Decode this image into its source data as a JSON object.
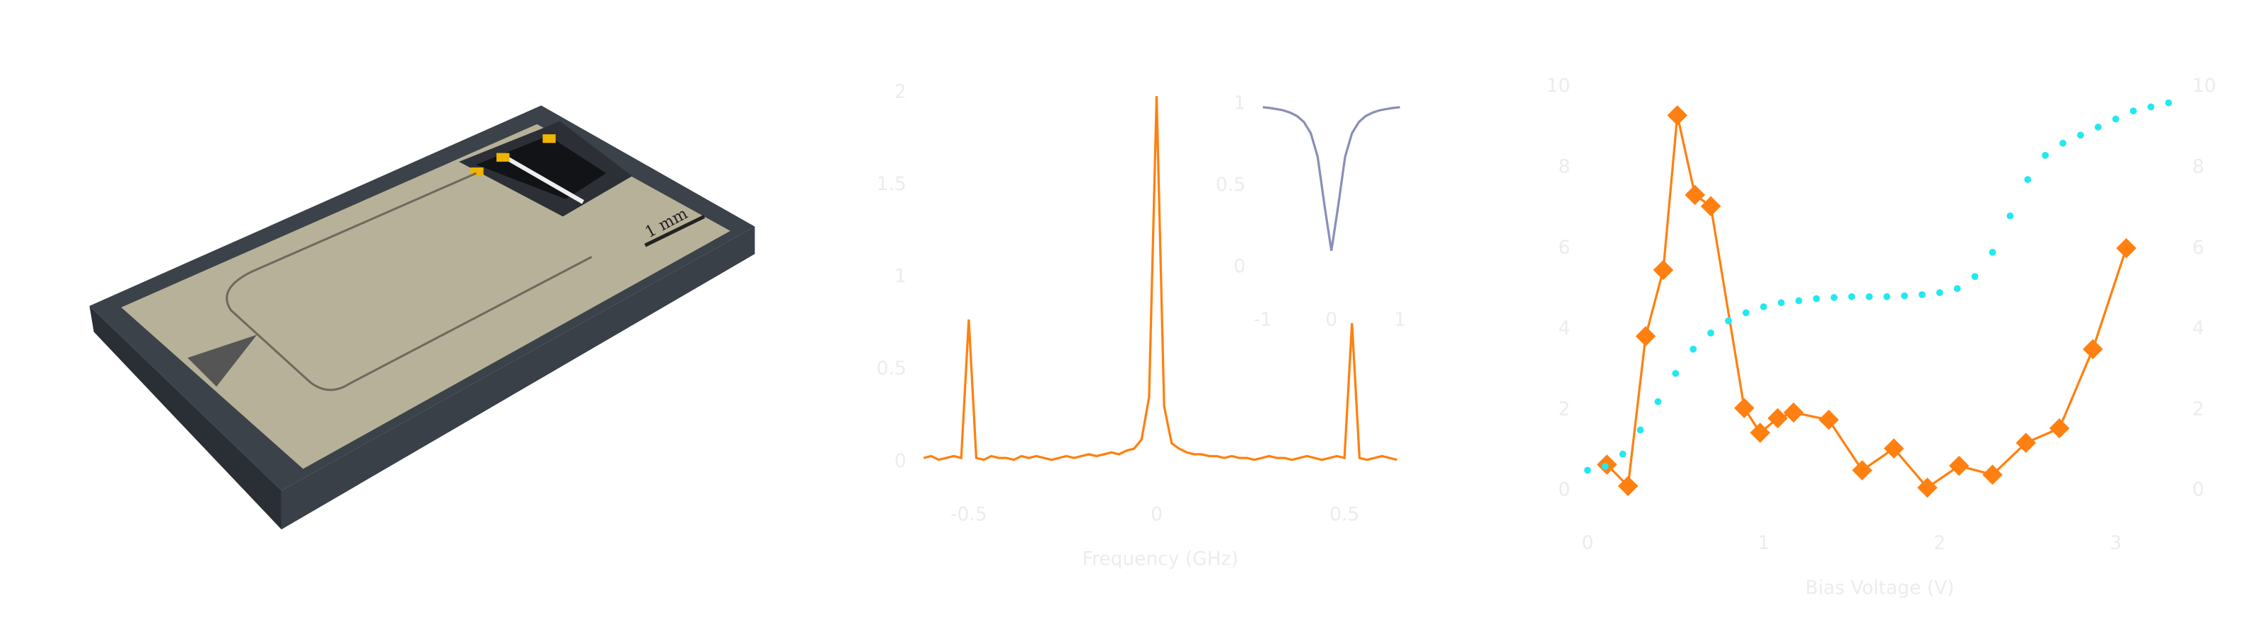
{
  "scale_label": "1 mm",
  "chart_data": [
    {
      "type": "line",
      "x_label": "Frequency (GHz)",
      "color": "#ff8010",
      "xlim": [
        -0.62,
        0.64
      ],
      "xticks": [
        -0.5,
        0,
        0.5
      ],
      "ylim": [
        0,
        2
      ],
      "yticks": [
        0,
        0.5,
        1,
        1.5,
        2
      ],
      "x": [
        -0.62,
        -0.6,
        -0.58,
        -0.56,
        -0.54,
        -0.52,
        -0.5,
        -0.48,
        -0.46,
        -0.44,
        -0.42,
        -0.4,
        -0.38,
        -0.36,
        -0.34,
        -0.32,
        -0.3,
        -0.28,
        -0.26,
        -0.24,
        -0.22,
        -0.2,
        -0.18,
        -0.16,
        -0.14,
        -0.12,
        -0.1,
        -0.08,
        -0.06,
        -0.04,
        -0.02,
        0,
        0.02,
        0.04,
        0.06,
        0.08,
        0.1,
        0.12,
        0.14,
        0.16,
        0.18,
        0.2,
        0.22,
        0.24,
        0.26,
        0.28,
        0.3,
        0.32,
        0.34,
        0.36,
        0.38,
        0.4,
        0.42,
        0.44,
        0.46,
        0.48,
        0.5,
        0.52,
        0.54,
        0.56,
        0.58,
        0.6,
        0.62,
        0.64
      ],
      "values": [
        0.02,
        0.03,
        0.01,
        0.02,
        0.03,
        0.02,
        0.77,
        0.02,
        0.01,
        0.03,
        0.02,
        0.02,
        0.01,
        0.03,
        0.02,
        0.03,
        0.02,
        0.01,
        0.02,
        0.03,
        0.02,
        0.03,
        0.04,
        0.03,
        0.04,
        0.05,
        0.04,
        0.06,
        0.07,
        0.12,
        0.35,
        1.98,
        0.3,
        0.1,
        0.07,
        0.05,
        0.04,
        0.04,
        0.03,
        0.03,
        0.02,
        0.03,
        0.02,
        0.02,
        0.01,
        0.02,
        0.03,
        0.02,
        0.02,
        0.01,
        0.02,
        0.03,
        0.02,
        0.01,
        0.02,
        0.03,
        0.02,
        0.75,
        0.02,
        0.01,
        0.02,
        0.03,
        0.02,
        0.01
      ]
    },
    {
      "type": "line",
      "color": "#8a8fb8",
      "xlim": [
        -1,
        1
      ],
      "xticks": [
        -1,
        0,
        1
      ],
      "ylim": [
        0,
        1
      ],
      "yticks": [
        0,
        0.5,
        1
      ],
      "x": [
        -1,
        -0.9,
        -0.8,
        -0.7,
        -0.6,
        -0.5,
        -0.4,
        -0.3,
        -0.2,
        -0.1,
        0,
        0.1,
        0.2,
        0.3,
        0.4,
        0.5,
        0.6,
        0.7,
        0.8,
        0.9,
        1
      ],
      "values": [
        0.98,
        0.976,
        0.969,
        0.961,
        0.947,
        0.926,
        0.889,
        0.82,
        0.676,
        0.377,
        0.1,
        0.377,
        0.676,
        0.82,
        0.889,
        0.926,
        0.947,
        0.961,
        0.969,
        0.976,
        0.98
      ]
    },
    {
      "type": "combo",
      "x_label": "Bias Voltage (V)",
      "xlim": [
        0,
        3.32
      ],
      "xticks": [
        0,
        1,
        2,
        3
      ],
      "ylim": [
        0,
        10
      ],
      "yticks": [
        0,
        2,
        4,
        6,
        8,
        10
      ],
      "y2lim": [
        0,
        10
      ],
      "y2ticks": [
        0,
        2,
        4,
        6,
        8,
        10
      ],
      "series": [
        {
          "color": "#ff8010",
          "marker": "diamond",
          "x": [
            0.11,
            0.23,
            0.33,
            0.43,
            0.51,
            0.61,
            0.7,
            0.89,
            0.98,
            1.08,
            1.17,
            1.37,
            1.56,
            1.74,
            1.93,
            2.11,
            2.3,
            2.49,
            2.68,
            2.87,
            3.06
          ],
          "values": [
            0.64,
            0.11,
            3.82,
            5.46,
            9.29,
            7.32,
            7.04,
            2.04,
            1.43,
            1.79,
            1.93,
            1.75,
            0.5,
            1.04,
            0.07,
            0.61,
            0.39,
            1.18,
            1.54,
            3.5,
            6.0
          ]
        },
        {
          "color": "#22e8f0",
          "marker": "dot",
          "axis": "y2",
          "x": [
            0,
            0.1,
            0.2,
            0.3,
            0.4,
            0.5,
            0.6,
            0.7,
            0.8,
            0.9,
            1,
            1.1,
            1.2,
            1.3,
            1.4,
            1.5,
            1.6,
            1.7,
            1.8,
            1.9,
            2,
            2.1,
            2.2,
            2.3,
            2.4,
            2.5,
            2.6,
            2.7,
            2.8,
            2.9,
            3,
            3.1,
            3.2,
            3.3
          ],
          "values": [
            0.5,
            0.6,
            0.9,
            1.5,
            2.2,
            2.9,
            3.5,
            3.9,
            4.2,
            4.4,
            4.55,
            4.65,
            4.7,
            4.75,
            4.78,
            4.8,
            4.8,
            4.8,
            4.82,
            4.85,
            4.9,
            5.0,
            5.3,
            5.9,
            6.8,
            7.7,
            8.3,
            8.6,
            8.8,
            9.0,
            9.2,
            9.4,
            9.5,
            9.6
          ]
        }
      ]
    }
  ]
}
